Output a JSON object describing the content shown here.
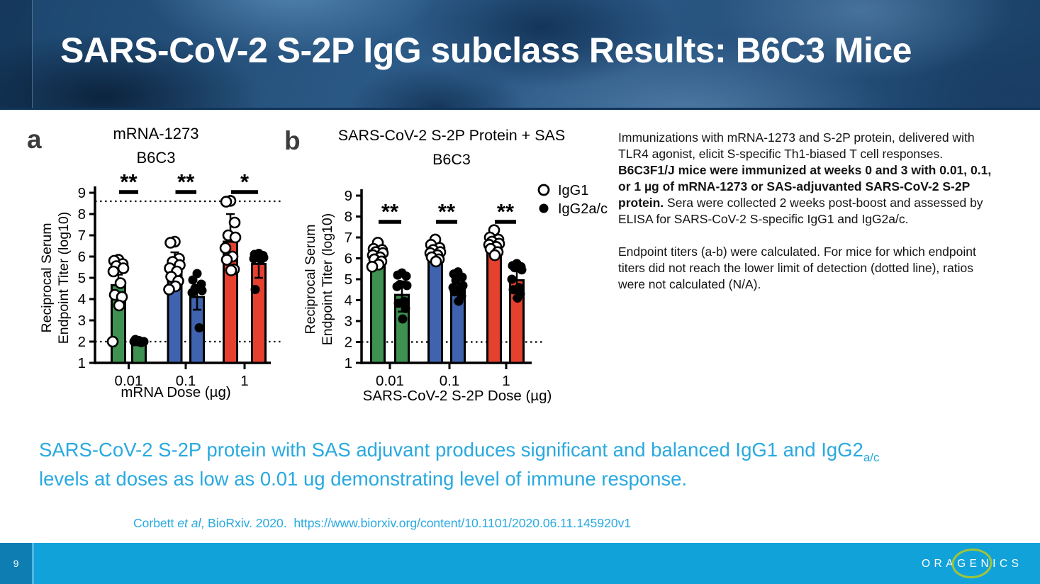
{
  "header": {
    "title": "SARS-CoV-2 S-2P IgG subclass Results: B6C3 Mice"
  },
  "description": {
    "p1_pre": "Immunizations with mRNA-1273 and S-2P protein, delivered with TLR4 agonist, elicit S-specific Th1-biased T cell responses. ",
    "p1_bold": "B6C3F1/J mice were immunized at weeks 0 and 3 with 0.01, 0.1, or 1 µg of mRNA-1273 or SAS-adjuvanted SARS-CoV-2 S-2P protein.",
    "p1_post": " Sera were collected 2 weeks post-boost and assessed by ELISA for SARS-CoV-2 S-specific IgG1 and IgG2a/c.",
    "p2": "Endpoint titers (a-b) were calculated. For mice for which endpoint titers did not reach the lower limit of detection (dotted line), ratios were not calculated (N/A)."
  },
  "summary": {
    "pre": "SARS-CoV-2 S-2P protein with SAS adjuvant produces significant and balanced IgG1 and IgG2",
    "sub": "a/c",
    "post": "  levels at doses as low as 0.01 ug demonstrating level of immune response."
  },
  "citation": {
    "author": "Corbett ",
    "etal": "et al",
    "mid": ", BioRxiv. 2020.  ",
    "url": "https://www.biorxiv.org/content/10.1101/2020.06.11.145920v1"
  },
  "footer": {
    "page_number": "9",
    "logo_text": "ORAGENICS"
  },
  "colors": {
    "accent_blue_text": "#29A9E0",
    "footer_bar": "#12A2DA",
    "footer_square": "#0E7EB2",
    "logo_ring_green": "#9FC43B",
    "bar_green": "#3E9150",
    "bar_blue": "#3F63AE",
    "bar_red": "#E6402F"
  },
  "chart_data": [
    {
      "id": "a",
      "panel_label": "a",
      "type": "bar",
      "title_lines": [
        "mRNA-1273",
        "B6C3"
      ],
      "ylabel_lines": [
        "Reciprocal Serum",
        "Endpoint Titer (log10)"
      ],
      "xlabel": "mRNA Dose (µg)",
      "ylim": [
        1,
        9
      ],
      "yticks": [
        1,
        2,
        3,
        4,
        5,
        6,
        7,
        8,
        9
      ],
      "categories": [
        "0.01",
        "0.1",
        "1"
      ],
      "dotted_lines": [
        2,
        8.6
      ],
      "grid": false,
      "legend": null,
      "significance": [
        "**",
        "**",
        "*"
      ],
      "groups": [
        {
          "dose": "0.01",
          "color": "#3E9150",
          "igg1": {
            "bar": 4.65,
            "err_up": 0.5,
            "err_dn": 0,
            "points": [
              5.85,
              5.8,
              5.65,
              5.55,
              5.45,
              5.3,
              4.75,
              4.2,
              4.1,
              3.7,
              2.0
            ]
          },
          "igg2": {
            "bar": 1.95,
            "err_up": 0,
            "err_dn": 0,
            "points": [
              2.05,
              2.05,
              2.0,
              2.0,
              2.0,
              2.0,
              1.95,
              2.1
            ]
          }
        },
        {
          "dose": "0.1",
          "color": "#3F63AE",
          "igg1": {
            "bar": 5.35,
            "err_up": 0.85,
            "err_dn": 0,
            "points": [
              6.7,
              6.65,
              5.9,
              5.75,
              5.6,
              5.45,
              5.3,
              5.05,
              4.85,
              4.6,
              4.45
            ]
          },
          "igg2": {
            "bar": 4.1,
            "err_up": 0.45,
            "err_dn": 0.6,
            "points": [
              5.2,
              4.9,
              4.7,
              4.5,
              4.4,
              4.3,
              2.65
            ]
          }
        },
        {
          "dose": "1",
          "color": "#E6402F",
          "igg1": {
            "bar": 6.7,
            "err_up": 1.3,
            "err_dn": 0,
            "points": [
              8.62,
              8.58,
              7.6,
              7.0,
              6.9,
              6.4,
              6.0,
              5.85,
              5.4,
              5.35
            ]
          },
          "igg2": {
            "bar": 5.65,
            "err_up": 0.4,
            "err_dn": 0.65,
            "points": [
              6.15,
              6.1,
              6.05,
              6.0,
              5.95,
              5.9,
              5.85,
              4.45
            ]
          }
        }
      ]
    },
    {
      "id": "b",
      "panel_label": "b",
      "type": "bar",
      "title_lines": [
        "SARS-CoV-2 S-2P Protein + SAS",
        "B6C3"
      ],
      "ylabel_lines": [
        "Reciprocal Serum",
        "Endpoint Titer (log10)"
      ],
      "xlabel": "SARS-CoV-2 S-2P Dose (µg)",
      "ylim": [
        1,
        9
      ],
      "yticks": [
        1,
        2,
        3,
        4,
        5,
        6,
        7,
        8,
        9
      ],
      "categories": [
        "0.01",
        "0.1",
        "1"
      ],
      "dotted_lines": [
        2
      ],
      "grid": false,
      "legend": [
        {
          "marker": "open",
          "label": "IgG1"
        },
        {
          "marker": "filled",
          "label": "IgG2a/c"
        }
      ],
      "significance": [
        "**",
        "**",
        "**"
      ],
      "groups": [
        {
          "dose": "0.01",
          "color": "#3E9150",
          "igg1": {
            "bar": 6.0,
            "err_up": 0,
            "err_dn": 0,
            "points": [
              6.75,
              6.45,
              6.4,
              6.3,
              6.25,
              6.15,
              6.05,
              5.95,
              5.85,
              5.7,
              5.6
            ]
          },
          "igg2": {
            "bar": 4.25,
            "err_up": 0.65,
            "err_dn": 0.8,
            "points": [
              5.3,
              5.2,
              5.15,
              4.75,
              4.7,
              4.65,
              3.95,
              3.85,
              3.6,
              3.1
            ]
          }
        },
        {
          "dose": "0.1",
          "color": "#3F63AE",
          "igg1": {
            "bar": 6.2,
            "err_up": 0,
            "err_dn": 0,
            "points": [
              6.9,
              6.65,
              6.5,
              6.4,
              6.3,
              6.25,
              6.15,
              6.05,
              5.95,
              5.85
            ]
          },
          "igg2": {
            "bar": 4.65,
            "err_up": 0.5,
            "err_dn": 0.7,
            "points": [
              5.35,
              5.25,
              5.1,
              4.95,
              4.7,
              4.6,
              4.5,
              4.4,
              4.2,
              3.95
            ]
          }
        },
        {
          "dose": "1",
          "color": "#E6402F",
          "igg1": {
            "bar": 6.4,
            "err_up": 0,
            "err_dn": 0,
            "points": [
              7.35,
              7.0,
              6.9,
              6.8,
              6.7,
              6.65,
              6.55,
              6.45,
              6.3,
              6.15
            ]
          },
          "igg2": {
            "bar": 4.95,
            "err_up": 0.55,
            "err_dn": 0.85,
            "points": [
              5.75,
              5.65,
              5.6,
              5.55,
              5.45,
              5.0,
              4.6,
              4.5,
              4.3,
              4.1
            ]
          }
        }
      ]
    }
  ]
}
